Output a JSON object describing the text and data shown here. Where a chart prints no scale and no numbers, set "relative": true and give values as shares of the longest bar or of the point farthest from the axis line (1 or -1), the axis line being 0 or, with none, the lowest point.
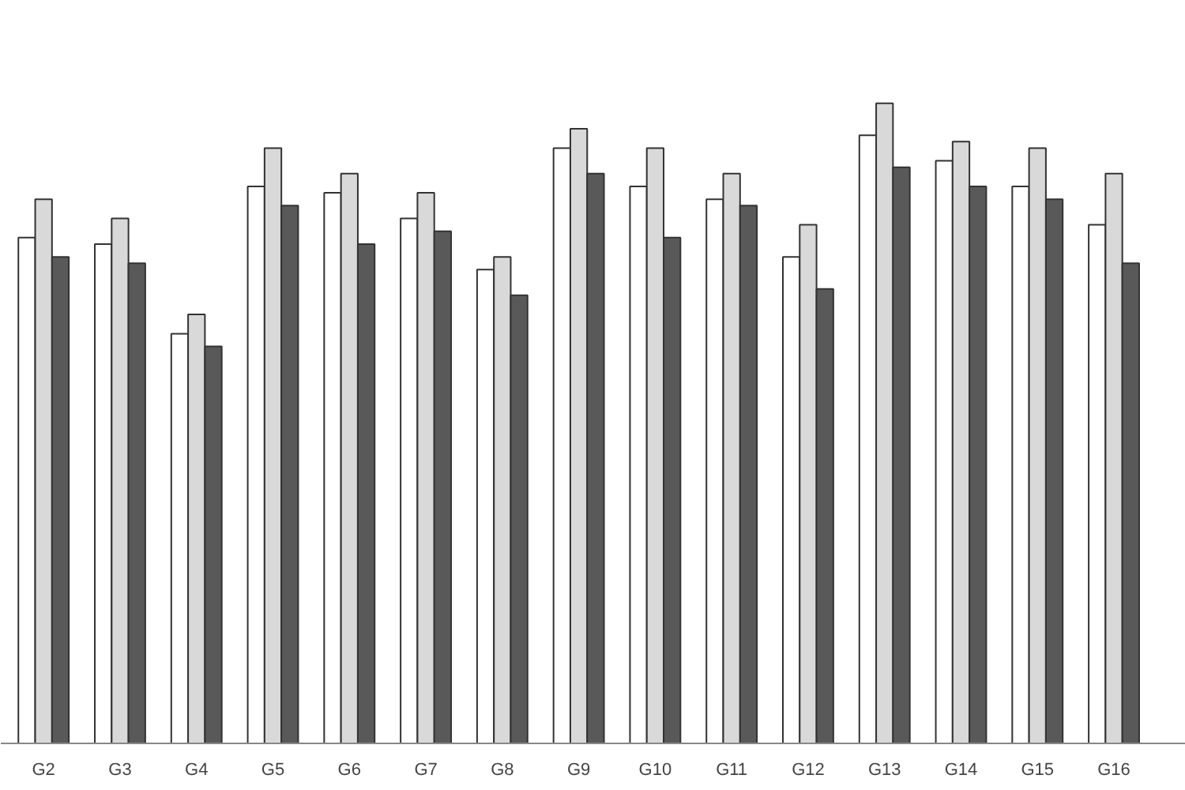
{
  "chart_data": {
    "type": "bar",
    "relative": true,
    "grid": false,
    "categories": [
      "G2",
      "G3",
      "G4",
      "G5",
      "G6",
      "G7",
      "G8",
      "G9",
      "G10",
      "G11",
      "G12",
      "G13",
      "G14",
      "G15",
      "G16"
    ],
    "series": [
      {
        "color": "#ffffff",
        "values": [
          0.79,
          0.78,
          0.64,
          0.87,
          0.86,
          0.82,
          0.74,
          0.93,
          0.87,
          0.85,
          0.76,
          0.95,
          0.91,
          0.87,
          0.81
        ]
      },
      {
        "color": "#d9d9d9",
        "values": [
          0.85,
          0.82,
          0.67,
          0.93,
          0.89,
          0.86,
          0.76,
          0.96,
          0.93,
          0.89,
          0.81,
          1.0,
          0.94,
          0.93,
          0.89
        ]
      },
      {
        "color": "#595959",
        "values": [
          0.76,
          0.75,
          0.62,
          0.84,
          0.78,
          0.8,
          0.7,
          0.89,
          0.79,
          0.84,
          0.71,
          0.9,
          0.87,
          0.85,
          0.75
        ]
      }
    ]
  }
}
